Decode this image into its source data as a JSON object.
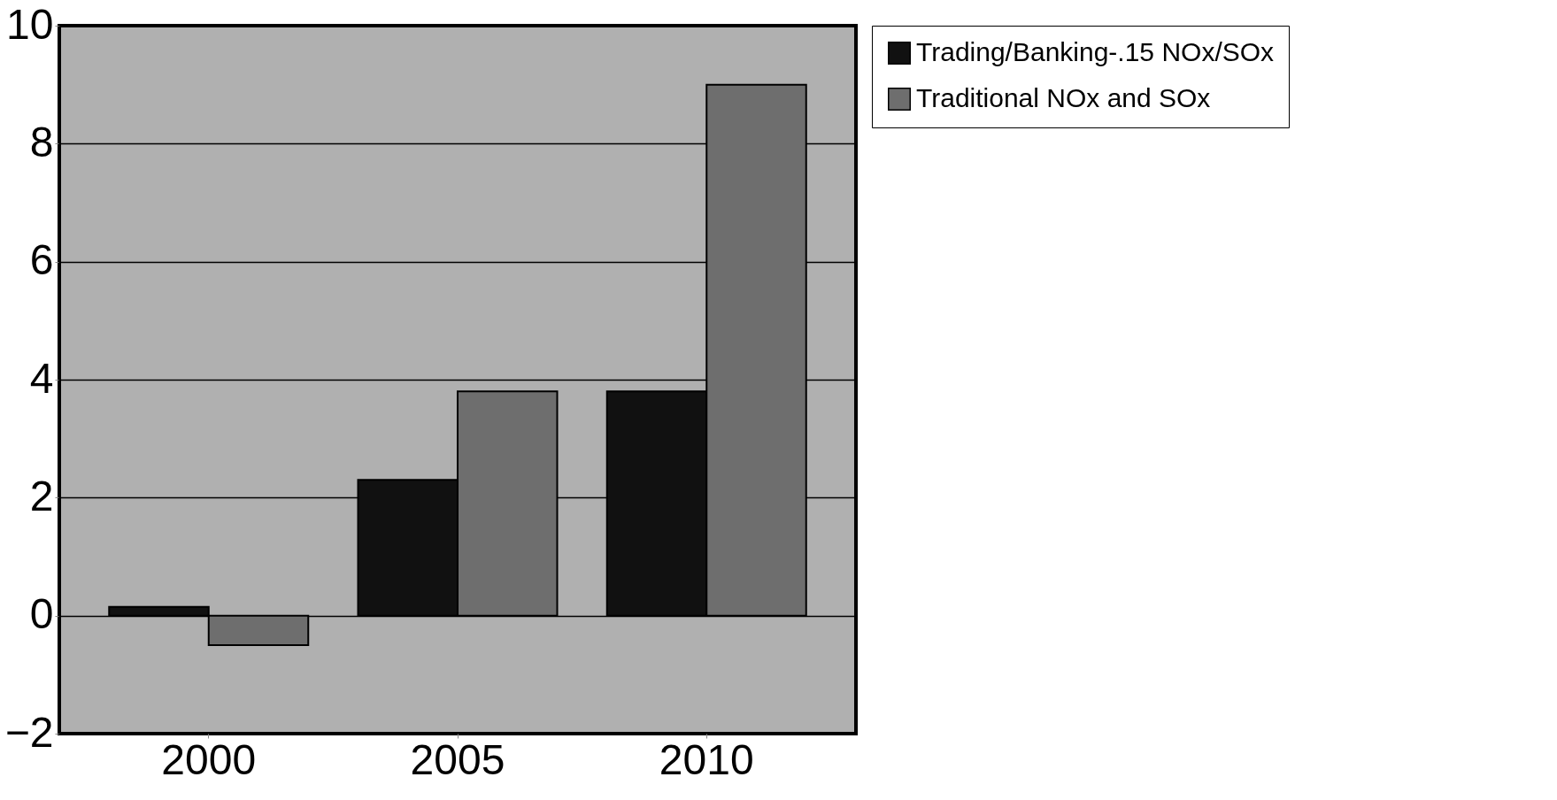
{
  "chart_data": {
    "type": "bar",
    "categories": [
      "2000",
      "2005",
      "2010"
    ],
    "series": [
      {
        "name": "Trading/Banking-.15 NOx/SOx",
        "color": "#111111",
        "values": [
          0.15,
          2.3,
          3.8
        ]
      },
      {
        "name": "Traditional NOx and SOx",
        "color": "#6e6e6e",
        "values": [
          -0.5,
          3.8,
          9.0
        ]
      }
    ],
    "ylim": [
      -2,
      10
    ],
    "yticks": [
      -2,
      0,
      2,
      4,
      6,
      8,
      10
    ],
    "grid": "y",
    "legend": "right"
  }
}
